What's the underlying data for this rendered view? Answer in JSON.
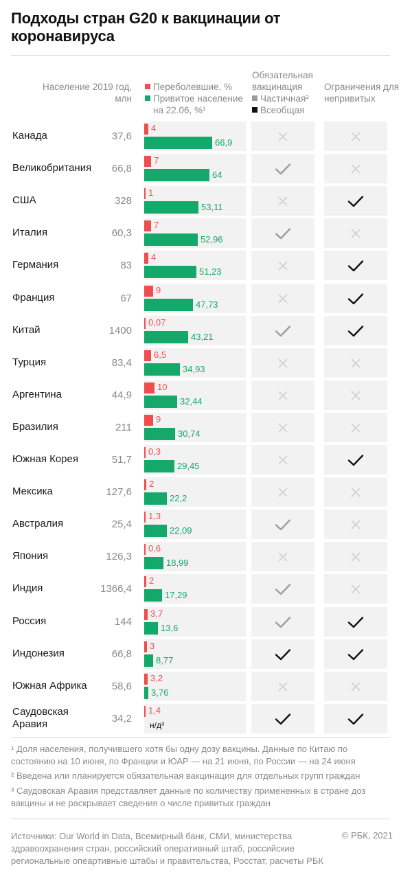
{
  "chart_data": {
    "type": "table",
    "title": "Подходы стран G20 к вакцинации от коронавируса",
    "columns": {
      "population": "Население 2019 год, млн",
      "recovered_legend": "Переболевшие, %",
      "vaccinated_legend": "Привитое население на 22.06, %¹",
      "mandatory_header": "Обязательная вакцинация",
      "mandatory_partial": "Частичная²",
      "mandatory_universal": "Всеобщая",
      "restrictions_header": "Ограничения для непривитых"
    },
    "colors": {
      "recovered": "#f04e4e",
      "vaccinated": "#14a86b",
      "partial": "#9d9d9d",
      "universal": "#111111",
      "none": "#d0d0d0"
    },
    "mandatory_values": [
      "none",
      "partial",
      "universal"
    ],
    "rows": [
      {
        "country": "Канада",
        "population": "37,6",
        "recovered": 4,
        "recovered_label": "4",
        "vaccinated": 66.9,
        "vaccinated_label": "66,9",
        "mandatory": "none",
        "restrictions": false
      },
      {
        "country": "Великобритания",
        "population": "66,8",
        "recovered": 7,
        "recovered_label": "7",
        "vaccinated": 64,
        "vaccinated_label": "64",
        "mandatory": "partial",
        "restrictions": false
      },
      {
        "country": "США",
        "population": "328",
        "recovered": 1,
        "recovered_label": "1",
        "vaccinated": 53.11,
        "vaccinated_label": "53,11",
        "mandatory": "none",
        "restrictions": true
      },
      {
        "country": "Италия",
        "population": "60,3",
        "recovered": 7,
        "recovered_label": "7",
        "vaccinated": 52.96,
        "vaccinated_label": "52,96",
        "mandatory": "partial",
        "restrictions": false
      },
      {
        "country": "Германия",
        "population": "83",
        "recovered": 4,
        "recovered_label": "4",
        "vaccinated": 51.23,
        "vaccinated_label": "51,23",
        "mandatory": "none",
        "restrictions": true
      },
      {
        "country": "Франция",
        "population": "67",
        "recovered": 9,
        "recovered_label": "9",
        "vaccinated": 47.73,
        "vaccinated_label": "47,73",
        "mandatory": "none",
        "restrictions": true
      },
      {
        "country": "Китай",
        "population": "1400",
        "recovered": 0.07,
        "recovered_label": "0,07",
        "vaccinated": 43.21,
        "vaccinated_label": "43,21",
        "mandatory": "partial",
        "restrictions": true
      },
      {
        "country": "Турция",
        "population": "83,4",
        "recovered": 6.5,
        "recovered_label": "6,5",
        "vaccinated": 34.93,
        "vaccinated_label": "34,93",
        "mandatory": "none",
        "restrictions": false
      },
      {
        "country": "Аргентина",
        "population": "44,9",
        "recovered": 10,
        "recovered_label": "10",
        "vaccinated": 32.44,
        "vaccinated_label": "32,44",
        "mandatory": "none",
        "restrictions": false
      },
      {
        "country": "Бразилия",
        "population": "211",
        "recovered": 9,
        "recovered_label": "9",
        "vaccinated": 30.74,
        "vaccinated_label": "30,74",
        "mandatory": "none",
        "restrictions": false
      },
      {
        "country": "Южная Корея",
        "population": "51,7",
        "recovered": 0.3,
        "recovered_label": "0,3",
        "vaccinated": 29.45,
        "vaccinated_label": "29,45",
        "mandatory": "none",
        "restrictions": true
      },
      {
        "country": "Мексика",
        "population": "127,6",
        "recovered": 2,
        "recovered_label": "2",
        "vaccinated": 22.2,
        "vaccinated_label": "22,2",
        "mandatory": "none",
        "restrictions": false
      },
      {
        "country": "Австралия",
        "population": "25,4",
        "recovered": 1.3,
        "recovered_label": "1,3",
        "vaccinated": 22.09,
        "vaccinated_label": "22,09",
        "mandatory": "partial",
        "restrictions": false
      },
      {
        "country": "Япония",
        "population": "126,3",
        "recovered": 0.6,
        "recovered_label": "0,6",
        "vaccinated": 18.99,
        "vaccinated_label": "18,99",
        "mandatory": "none",
        "restrictions": false
      },
      {
        "country": "Индия",
        "population": "1366,4",
        "recovered": 2,
        "recovered_label": "2",
        "vaccinated": 17.29,
        "vaccinated_label": "17,29",
        "mandatory": "partial",
        "restrictions": false
      },
      {
        "country": "Россия",
        "population": "144",
        "recovered": 3.7,
        "recovered_label": "3,7",
        "vaccinated": 13.6,
        "vaccinated_label": "13,6",
        "mandatory": "partial",
        "restrictions": true
      },
      {
        "country": "Индонезия",
        "population": "66,8",
        "recovered": 3,
        "recovered_label": "3",
        "vaccinated": 8.77,
        "vaccinated_label": "8,77",
        "mandatory": "universal",
        "restrictions": true
      },
      {
        "country": "Южная Африка",
        "population": "58,6",
        "recovered": 3.2,
        "recovered_label": "3,2",
        "vaccinated": 3.76,
        "vaccinated_label": "3,76",
        "mandatory": "none",
        "restrictions": false
      },
      {
        "country": "Саудовская Аравия",
        "population": "34,2",
        "recovered": 1.4,
        "recovered_label": "1,4",
        "vaccinated": null,
        "vaccinated_label": "н/д³",
        "mandatory": "universal",
        "restrictions": true
      }
    ]
  },
  "footnotes": [
    "¹ Доля населения, получившего хотя бы одну дозу вакцины. Данные по Китаю по состоянию на 10 июня, по Франции и ЮАР — на 21 июня, по России — на 24 июня",
    "² Введена или планируется обязательная вакцинация для отдельных групп граждан",
    "³ Саудовская Аравия представляет данные по количеству примененных в стране доз вакцины и не раскрывает сведения о числе привитых граждан"
  ],
  "sources": "Источники: Our World in Data, Всемирный банк, СМИ, министерства здравоохранения стран, российский оперативный штаб, российские региональные опеaртивные штабы и правительства, Росстат, расчеты РБК",
  "copyright": "© РБК, 2021"
}
